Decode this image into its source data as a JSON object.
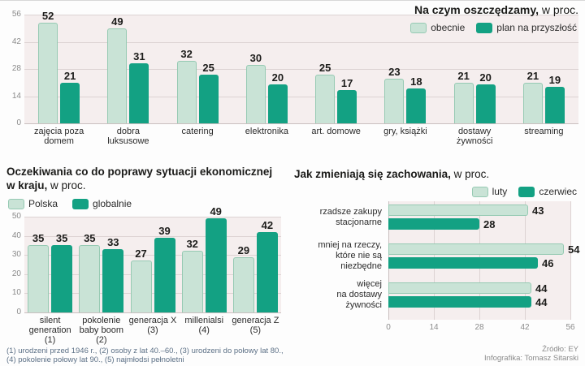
{
  "colors": {
    "light_series": "#c9e3d6",
    "light_series_border": "#96cab3",
    "dark_series": "#13a183",
    "plot_bg": "#f5eeee",
    "grid": "#ddd3d3",
    "axis_text": "#8b8b8b",
    "value_text": "#1c1c1a",
    "footnote_text": "#5c7086"
  },
  "chart_data": [
    {
      "id": "savings",
      "type": "bar",
      "title_bold": "Na czym oszczędzamy,",
      "title_normal": " w proc.",
      "legend_position": "top-right",
      "grid": true,
      "categories": [
        [
          "zajęcia poza",
          "domem"
        ],
        [
          "dobra",
          "luksusowe"
        ],
        [
          "catering"
        ],
        [
          "elektronika"
        ],
        [
          "art. domowe"
        ],
        [
          "gry, książki"
        ],
        [
          "dostawy",
          "żywności"
        ],
        [
          "streaming"
        ]
      ],
      "series": [
        {
          "name": "obecnie",
          "values": [
            52,
            49,
            32,
            30,
            25,
            23,
            21,
            21
          ]
        },
        {
          "name": "plan na przyszłość",
          "values": [
            21,
            31,
            25,
            20,
            17,
            18,
            20,
            19
          ]
        }
      ],
      "yticks": [
        0,
        14,
        28,
        42,
        56
      ],
      "ylim": [
        0,
        56
      ]
    },
    {
      "id": "expectations",
      "type": "bar",
      "title_bold_line1": "Oczekiwania co do poprawy sytuacji ekonomicznej",
      "title_bold_line2": "w kraju,",
      "title_normal": " w proc.",
      "legend_position": "top-left",
      "grid": true,
      "categories": [
        [
          "silent",
          "generation",
          "(1)"
        ],
        [
          "pokolenie",
          "baby boom",
          "(2)"
        ],
        [
          "generacja X",
          "(3)"
        ],
        [
          "millenialsi",
          "(4)"
        ],
        [
          "generacja Z",
          "(5)"
        ]
      ],
      "series": [
        {
          "name": "Polska",
          "values": [
            35,
            35,
            27,
            32,
            29
          ]
        },
        {
          "name": "globalnie",
          "values": [
            35,
            33,
            39,
            49,
            42
          ]
        }
      ],
      "yticks": [
        0,
        10,
        20,
        30,
        40,
        50
      ],
      "ylim": [
        0,
        50
      ]
    },
    {
      "id": "behaviors",
      "type": "bar-horizontal",
      "title_bold": "Jak zmieniają się zachowania,",
      "title_normal": " w proc.",
      "legend_position": "top-right",
      "grid": true,
      "categories": [
        [
          "rzadsze zakupy",
          "stacjonarne"
        ],
        [
          "mniej na rzeczy,",
          "które nie są",
          "niezbędne"
        ],
        [
          "więcej",
          "na dostawy",
          "żywności"
        ]
      ],
      "series": [
        {
          "name": "luty",
          "values": [
            43,
            54,
            44
          ]
        },
        {
          "name": "czerwiec",
          "values": [
            28,
            46,
            44
          ]
        }
      ],
      "xticks": [
        0,
        14,
        28,
        42,
        56
      ],
      "xlim": [
        0,
        56
      ]
    }
  ],
  "footnote": {
    "line1": "(1) urodzeni przed 1946 r., (2) osoby z lat 40.–60., (3) urodzeni do połowy lat 80.,",
    "line2": "(4) pokolenie połowy lat 90., (5) najmłodsi pełnoletni"
  },
  "source": {
    "line1": "Źródło: EY",
    "line2": "Infografika: Tomasz Sitarski"
  }
}
